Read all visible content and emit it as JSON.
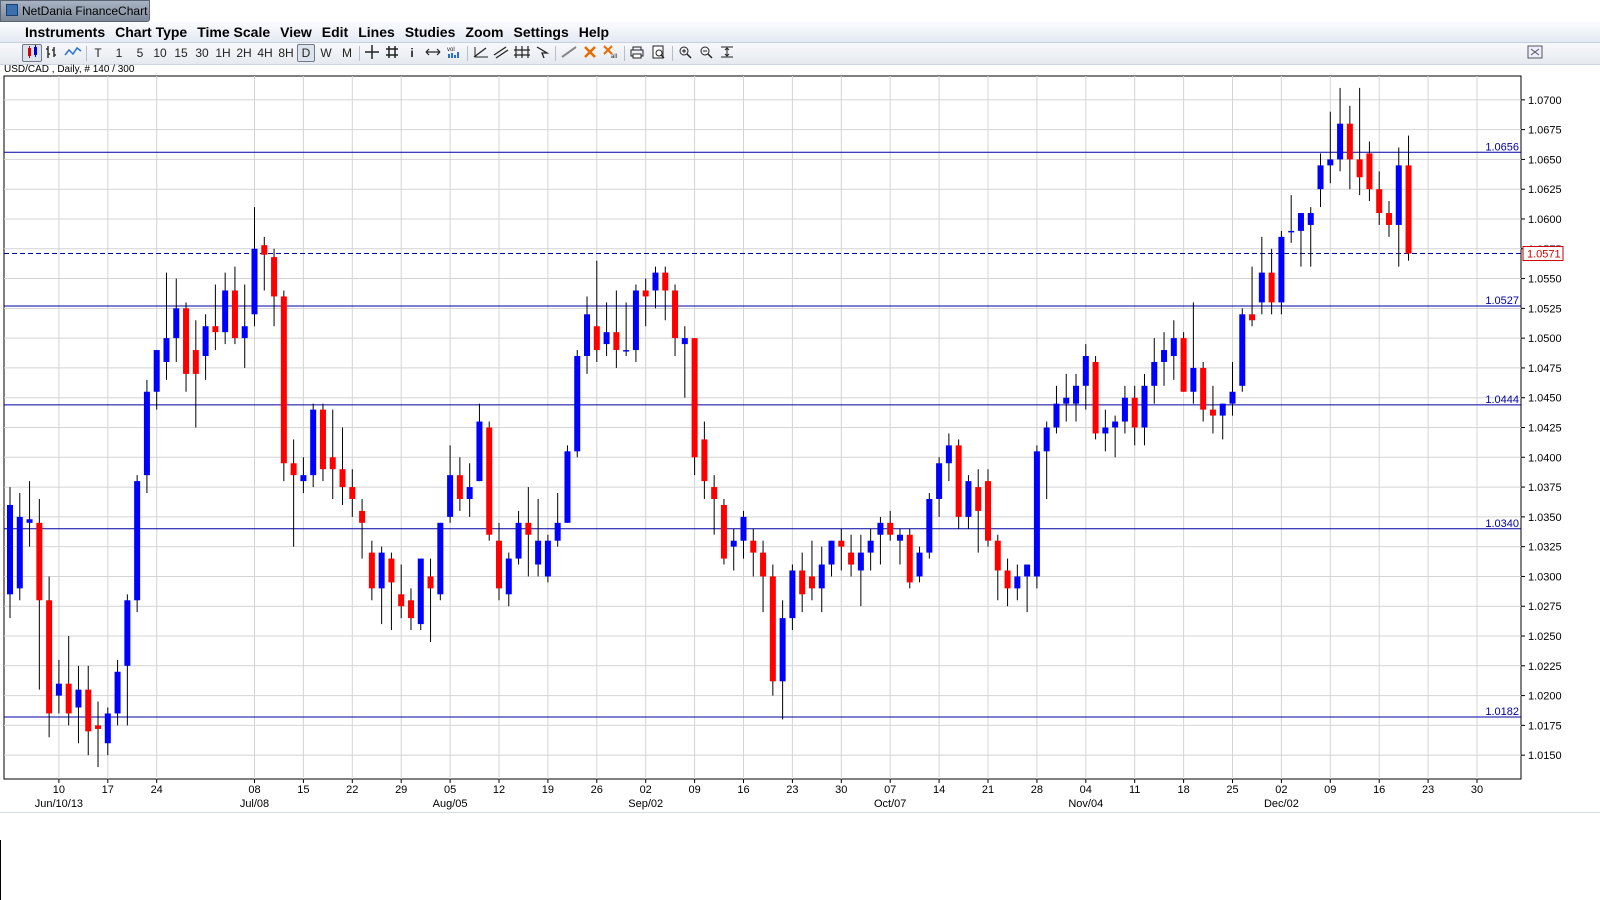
{
  "app": {
    "title": "NetDania FinanceChart"
  },
  "menu": [
    "Instruments",
    "Chart Type",
    "Time Scale",
    "View",
    "Edit",
    "Lines",
    "Studies",
    "Zoom",
    "Settings",
    "Help"
  ],
  "toolbar": {
    "intervals": [
      "T",
      "1",
      "5",
      "10",
      "15",
      "30",
      "1H",
      "2H",
      "4H",
      "8H",
      "D",
      "W",
      "M"
    ],
    "selected_interval": "D",
    "draw_tools": [
      "crosshair-icon",
      "grid-icon",
      "info-icon",
      "scroll-arrows-icon",
      "volume-icon",
      "trendline-icon",
      "channel-icon",
      "fibonacci-icon",
      "arrow-cursor-icon",
      "line-tool-icon",
      "delete-icon",
      "delete-all-icon",
      "print-icon",
      "print-preview-icon",
      "zoom-in-icon",
      "zoom-out-icon",
      "zoom-fit-icon"
    ]
  },
  "instrument_label": "USD/CAD , Daily, # 140 / 300",
  "colors": {
    "up": "#0000ff",
    "down": "#ff0000",
    "level_line": "#0000a0",
    "grid": "#d4d4d4",
    "current_price_box": "#cc0000"
  },
  "chart_data": {
    "type": "candlestick",
    "symbol": "USD/CAD",
    "timeframe": "Daily",
    "ylim": [
      1.013,
      1.072
    ],
    "y_ticks": [
      "1.0150",
      "1.0175",
      "1.0200",
      "1.0225",
      "1.0250",
      "1.0275",
      "1.0300",
      "1.0325",
      "1.0350",
      "1.0375",
      "1.0400",
      "1.0425",
      "1.0450",
      "1.0475",
      "1.0500",
      "1.0525",
      "1.0550",
      "1.0575",
      "1.0600",
      "1.0625",
      "1.0650",
      "1.0675",
      "1.0700"
    ],
    "x_ticks": [
      {
        "day": "10",
        "month": "Jun/10/13",
        "bar": 5
      },
      {
        "day": "17",
        "month": "",
        "bar": 10
      },
      {
        "day": "24",
        "month": "",
        "bar": 15
      },
      {
        "day": "08",
        "month": "Jul/08",
        "bar": 25
      },
      {
        "day": "15",
        "month": "",
        "bar": 30
      },
      {
        "day": "22",
        "month": "",
        "bar": 35
      },
      {
        "day": "29",
        "month": "",
        "bar": 40
      },
      {
        "day": "05",
        "month": "Aug/05",
        "bar": 45
      },
      {
        "day": "12",
        "month": "",
        "bar": 50
      },
      {
        "day": "19",
        "month": "",
        "bar": 55
      },
      {
        "day": "26",
        "month": "",
        "bar": 60
      },
      {
        "day": "02",
        "month": "Sep/02",
        "bar": 65
      },
      {
        "day": "09",
        "month": "",
        "bar": 70
      },
      {
        "day": "16",
        "month": "",
        "bar": 75
      },
      {
        "day": "23",
        "month": "",
        "bar": 80
      },
      {
        "day": "30",
        "month": "",
        "bar": 85
      },
      {
        "day": "07",
        "month": "Oct/07",
        "bar": 90
      },
      {
        "day": "14",
        "month": "",
        "bar": 95
      },
      {
        "day": "21",
        "month": "",
        "bar": 100
      },
      {
        "day": "28",
        "month": "",
        "bar": 105
      },
      {
        "day": "04",
        "month": "Nov/04",
        "bar": 110
      },
      {
        "day": "11",
        "month": "",
        "bar": 115
      },
      {
        "day": "18",
        "month": "",
        "bar": 120
      },
      {
        "day": "25",
        "month": "",
        "bar": 125
      },
      {
        "day": "02",
        "month": "Dec/02",
        "bar": 130
      },
      {
        "day": "09",
        "month": "",
        "bar": 135
      },
      {
        "day": "16",
        "month": "",
        "bar": 140
      },
      {
        "day": "23",
        "month": "",
        "bar": 145
      },
      {
        "day": "30",
        "month": "",
        "bar": 150
      }
    ],
    "horizontal_lines": [
      {
        "value": 1.0656,
        "label": "1.0656",
        "style": "solid"
      },
      {
        "value": 1.0527,
        "label": "1.0527",
        "style": "solid"
      },
      {
        "value": 1.0444,
        "label": "1.0444",
        "style": "solid"
      },
      {
        "value": 1.034,
        "label": "1.0340",
        "style": "solid"
      },
      {
        "value": 1.0182,
        "label": "1.0182",
        "style": "solid"
      }
    ],
    "current_price": {
      "value": 1.0571,
      "label": "1.0571"
    },
    "candles_ohlc": [
      [
        1.0285,
        1.0375,
        1.0265,
        1.036
      ],
      [
        1.029,
        1.037,
        1.028,
        1.035
      ],
      [
        1.0345,
        1.038,
        1.0325,
        1.0348
      ],
      [
        1.0345,
        1.0365,
        1.0205,
        1.028
      ],
      [
        1.028,
        1.03,
        1.0165,
        1.0185
      ],
      [
        1.02,
        1.023,
        1.0185,
        1.021
      ],
      [
        1.021,
        1.025,
        1.0175,
        1.0185
      ],
      [
        1.019,
        1.0225,
        1.016,
        1.0205
      ],
      [
        1.0205,
        1.0225,
        1.015,
        1.017
      ],
      [
        1.0175,
        1.0195,
        1.014,
        1.0172
      ],
      [
        1.016,
        1.019,
        1.015,
        1.0185
      ],
      [
        1.0185,
        1.023,
        1.0175,
        1.022
      ],
      [
        1.0225,
        1.0285,
        1.0175,
        1.028
      ],
      [
        1.028,
        1.0385,
        1.027,
        1.038
      ],
      [
        1.0385,
        1.0465,
        1.037,
        1.0455
      ],
      [
        1.0455,
        1.0485,
        1.044,
        1.049
      ],
      [
        1.048,
        1.0555,
        1.0465,
        1.05
      ],
      [
        1.05,
        1.055,
        1.048,
        1.0525
      ],
      [
        1.0525,
        1.053,
        1.0455,
        1.047
      ],
      [
        1.049,
        1.0515,
        1.0425,
        1.047
      ],
      [
        1.0485,
        1.052,
        1.0465,
        1.051
      ],
      [
        1.051,
        1.0545,
        1.049,
        1.0505
      ],
      [
        1.0505,
        1.0555,
        1.0495,
        1.054
      ],
      [
        1.054,
        1.056,
        1.0495,
        1.05
      ],
      [
        1.05,
        1.0545,
        1.0475,
        1.051
      ],
      [
        1.052,
        1.061,
        1.051,
        1.0575
      ],
      [
        1.0578,
        1.0585,
        1.054,
        1.057
      ],
      [
        1.0568,
        1.0575,
        1.051,
        1.0535
      ],
      [
        1.0535,
        1.054,
        1.038,
        1.0395
      ],
      [
        1.0395,
        1.0415,
        1.0325,
        1.0385
      ],
      [
        1.038,
        1.04,
        1.037,
        1.0385
      ],
      [
        1.0385,
        1.0445,
        1.0375,
        1.044
      ],
      [
        1.044,
        1.0445,
        1.038,
        1.039
      ],
      [
        1.04,
        1.044,
        1.0365,
        1.039
      ],
      [
        1.039,
        1.0425,
        1.036,
        1.0375
      ],
      [
        1.0375,
        1.039,
        1.035,
        1.0365
      ],
      [
        1.0355,
        1.0365,
        1.0315,
        1.0345
      ],
      [
        1.032,
        1.033,
        1.028,
        1.029
      ],
      [
        1.029,
        1.0325,
        1.026,
        1.032
      ],
      [
        1.0315,
        1.032,
        1.0255,
        1.0295
      ],
      [
        1.0285,
        1.031,
        1.0265,
        1.0275
      ],
      [
        1.028,
        1.029,
        1.0255,
        1.0265
      ],
      [
        1.026,
        1.031,
        1.0255,
        1.0315
      ],
      [
        1.03,
        1.0315,
        1.0245,
        1.029
      ],
      [
        1.0285,
        1.0345,
        1.028,
        1.0345
      ],
      [
        1.035,
        1.041,
        1.0345,
        1.0385
      ],
      [
        1.0385,
        1.04,
        1.0355,
        1.0365
      ],
      [
        1.0365,
        1.0395,
        1.035,
        1.0375
      ],
      [
        1.038,
        1.0445,
        1.038,
        1.043
      ],
      [
        1.0425,
        1.043,
        1.033,
        1.0335
      ],
      [
        1.033,
        1.0345,
        1.028,
        1.029
      ],
      [
        1.0285,
        1.032,
        1.0275,
        1.0315
      ],
      [
        1.0315,
        1.0355,
        1.031,
        1.0345
      ],
      [
        1.0345,
        1.0375,
        1.03,
        1.0335
      ],
      [
        1.031,
        1.0365,
        1.03,
        1.033
      ],
      [
        1.03,
        1.0335,
        1.0295,
        1.033
      ],
      [
        1.033,
        1.037,
        1.0325,
        1.0345
      ],
      [
        1.0345,
        1.041,
        1.0345,
        1.0405
      ],
      [
        1.0405,
        1.049,
        1.04,
        1.0485
      ],
      [
        1.0485,
        1.0535,
        1.047,
        1.052
      ],
      [
        1.051,
        1.0565,
        1.048,
        1.049
      ],
      [
        1.0495,
        1.053,
        1.0485,
        1.0505
      ],
      [
        1.0505,
        1.054,
        1.0475,
        1.049
      ],
      [
        1.049,
        1.053,
        1.0485,
        1.049
      ],
      [
        1.049,
        1.0545,
        1.048,
        1.054
      ],
      [
        1.054,
        1.055,
        1.051,
        1.0535
      ],
      [
        1.054,
        1.056,
        1.0525,
        1.0555
      ],
      [
        1.0555,
        1.056,
        1.0515,
        1.054
      ],
      [
        1.054,
        1.0545,
        1.0485,
        1.05
      ],
      [
        1.0495,
        1.051,
        1.045,
        1.05
      ],
      [
        1.05,
        1.05,
        1.0385,
        1.04
      ],
      [
        1.0415,
        1.043,
        1.0365,
        1.038
      ],
      [
        1.0375,
        1.0385,
        1.0335,
        1.0365
      ],
      [
        1.036,
        1.0365,
        1.031,
        1.0315
      ],
      [
        1.0325,
        1.034,
        1.0305,
        1.033
      ],
      [
        1.033,
        1.0355,
        1.0315,
        1.035
      ],
      [
        1.033,
        1.034,
        1.03,
        1.032
      ],
      [
        1.032,
        1.033,
        1.027,
        1.03
      ],
      [
        1.03,
        1.031,
        1.02,
        1.0212
      ],
      [
        1.0212,
        1.028,
        1.018,
        1.0265
      ],
      [
        1.0265,
        1.031,
        1.0255,
        1.0305
      ],
      [
        1.0305,
        1.032,
        1.027,
        1.0285
      ],
      [
        1.03,
        1.033,
        1.028,
        1.029
      ],
      [
        1.029,
        1.0325,
        1.027,
        1.031
      ],
      [
        1.031,
        1.033,
        1.03,
        1.033
      ],
      [
        1.033,
        1.034,
        1.0305,
        1.0325
      ],
      [
        1.032,
        1.0335,
        1.03,
        1.031
      ],
      [
        1.0305,
        1.0335,
        1.0275,
        1.032
      ],
      [
        1.032,
        1.034,
        1.0305,
        1.033
      ],
      [
        1.0335,
        1.035,
        1.031,
        1.0345
      ],
      [
        1.0345,
        1.0355,
        1.033,
        1.0335
      ],
      [
        1.033,
        1.034,
        1.031,
        1.0335
      ],
      [
        1.0335,
        1.034,
        1.029,
        1.0295
      ],
      [
        1.03,
        1.0325,
        1.0295,
        1.032
      ],
      [
        1.032,
        1.037,
        1.0315,
        1.0365
      ],
      [
        1.0365,
        1.04,
        1.035,
        1.0395
      ],
      [
        1.0395,
        1.042,
        1.038,
        1.041
      ],
      [
        1.041,
        1.0415,
        1.034,
        1.035
      ],
      [
        1.035,
        1.0385,
        1.034,
        1.038
      ],
      [
        1.0375,
        1.039,
        1.032,
        1.0355
      ],
      [
        1.038,
        1.039,
        1.0325,
        1.033
      ],
      [
        1.033,
        1.0335,
        1.028,
        1.0305
      ],
      [
        1.0305,
        1.0315,
        1.0275,
        1.029
      ],
      [
        1.029,
        1.031,
        1.028,
        1.03
      ],
      [
        1.03,
        1.031,
        1.027,
        1.031
      ],
      [
        1.03,
        1.041,
        1.029,
        1.0405
      ],
      [
        1.0405,
        1.043,
        1.0365,
        1.0425
      ],
      [
        1.0425,
        1.046,
        1.042,
        1.0445
      ],
      [
        1.0445,
        1.047,
        1.043,
        1.045
      ],
      [
        1.0445,
        1.047,
        1.043,
        1.046
      ],
      [
        1.046,
        1.0495,
        1.044,
        1.0485
      ],
      [
        1.048,
        1.0485,
        1.0415,
        1.042
      ],
      [
        1.042,
        1.044,
        1.0405,
        1.0425
      ],
      [
        1.0425,
        1.0435,
        1.04,
        1.043
      ],
      [
        1.043,
        1.046,
        1.042,
        1.045
      ],
      [
        1.045,
        1.046,
        1.041,
        1.0425
      ],
      [
        1.0425,
        1.047,
        1.041,
        1.046
      ],
      [
        1.046,
        1.05,
        1.0445,
        1.048
      ],
      [
        1.048,
        1.0505,
        1.046,
        1.049
      ],
      [
        1.0485,
        1.0515,
        1.0465,
        1.05
      ],
      [
        1.05,
        1.0505,
        1.0455,
        1.0455
      ],
      [
        1.0455,
        1.053,
        1.0445,
        1.0475
      ],
      [
        1.0475,
        1.048,
        1.043,
        1.044
      ],
      [
        1.044,
        1.046,
        1.042,
        1.0435
      ],
      [
        1.0435,
        1.0445,
        1.0415,
        1.0445
      ],
      [
        1.0445,
        1.048,
        1.0435,
        1.0455
      ],
      [
        1.046,
        1.0525,
        1.0455,
        1.052
      ],
      [
        1.052,
        1.056,
        1.051,
        1.0515
      ],
      [
        1.053,
        1.0585,
        1.052,
        1.0555
      ],
      [
        1.0555,
        1.0575,
        1.052,
        1.053
      ],
      [
        1.053,
        1.059,
        1.052,
        1.0585
      ],
      [
        1.059,
        1.062,
        1.058,
        1.059
      ],
      [
        1.059,
        1.06,
        1.056,
        1.0605
      ],
      [
        1.0595,
        1.061,
        1.056,
        1.0605
      ],
      [
        1.0625,
        1.0655,
        1.061,
        1.0645
      ],
      [
        1.0645,
        1.069,
        1.063,
        1.065
      ],
      [
        1.065,
        1.071,
        1.064,
        1.068
      ],
      [
        1.068,
        1.0695,
        1.0625,
        1.065
      ],
      [
        1.065,
        1.071,
        1.062,
        1.0635
      ],
      [
        1.0655,
        1.0665,
        1.0615,
        1.0625
      ],
      [
        1.0625,
        1.064,
        1.0595,
        1.0605
      ],
      [
        1.0605,
        1.0615,
        1.0585,
        1.0595
      ],
      [
        1.0595,
        1.066,
        1.056,
        1.0645
      ],
      [
        1.0645,
        1.067,
        1.0565,
        1.0571
      ]
    ]
  }
}
